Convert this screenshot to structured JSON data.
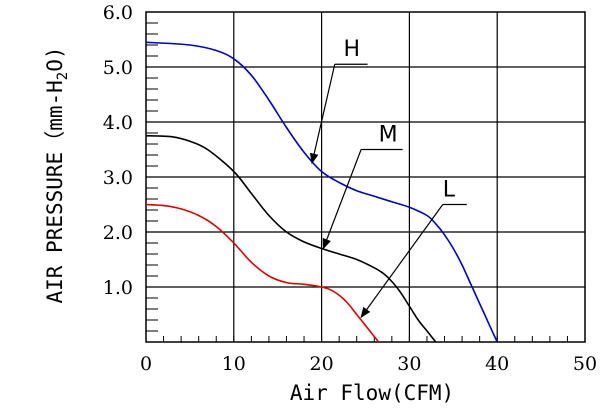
{
  "chart_data": {
    "type": "line",
    "xlabel": "Air Flow(CFM)",
    "ylabel_main": "AIR PRESSURE（mm-H",
    "ylabel_sub": "2",
    "ylabel_end": "O)",
    "xlim": [
      0,
      50
    ],
    "ylim": [
      0,
      6
    ],
    "x_ticks": [
      0,
      10,
      20,
      30,
      40,
      50
    ],
    "x_tick_labels": [
      "0",
      "10",
      "20",
      "30",
      "40",
      "50"
    ],
    "y_ticks": [
      1,
      2,
      3,
      4,
      5,
      6
    ],
    "y_tick_labels": [
      "1.0",
      "2.0",
      "3.0",
      "4.0",
      "5.0",
      "6.0"
    ],
    "grid": true,
    "series": [
      {
        "name": "H",
        "color": "#0000cc",
        "x": [
          0,
          5,
          8,
          10,
          12,
          14,
          16,
          18,
          20,
          22,
          24,
          26,
          28,
          30,
          32,
          33,
          34,
          35,
          36,
          37,
          38,
          39,
          40
        ],
        "y": [
          5.45,
          5.4,
          5.3,
          5.15,
          4.85,
          4.4,
          3.9,
          3.45,
          3.1,
          2.9,
          2.75,
          2.65,
          2.55,
          2.45,
          2.3,
          2.15,
          1.95,
          1.7,
          1.4,
          1.05,
          0.7,
          0.35,
          0
        ]
      },
      {
        "name": "M",
        "color": "#000000",
        "x": [
          0,
          3,
          5,
          7,
          10,
          12,
          14,
          16,
          18,
          20,
          22,
          24,
          26,
          27,
          28,
          29,
          30,
          31,
          32,
          33
        ],
        "y": [
          3.75,
          3.73,
          3.65,
          3.5,
          3.1,
          2.7,
          2.3,
          2.0,
          1.82,
          1.7,
          1.6,
          1.5,
          1.35,
          1.25,
          1.1,
          0.9,
          0.65,
          0.4,
          0.2,
          0
        ]
      },
      {
        "name": "L",
        "color": "#dd0000",
        "x": [
          0,
          2,
          4,
          6,
          8,
          10,
          12,
          14,
          16,
          18,
          20,
          21,
          22,
          23,
          24,
          25,
          26,
          26.5
        ],
        "y": [
          2.5,
          2.48,
          2.42,
          2.3,
          2.1,
          1.8,
          1.45,
          1.2,
          1.08,
          1.05,
          1.0,
          0.95,
          0.85,
          0.7,
          0.5,
          0.3,
          0.1,
          0
        ]
      }
    ],
    "callouts": [
      {
        "label": "H",
        "text_at": [
          22.5,
          5.2
        ],
        "arrow_from": [
          21.5,
          5.05
        ],
        "arrow_to": [
          18.9,
          3.25
        ]
      },
      {
        "label": "M",
        "text_at": [
          26.5,
          3.65
        ],
        "arrow_from": [
          24.5,
          3.5
        ],
        "arrow_to": [
          20.2,
          1.7
        ]
      },
      {
        "label": "L",
        "text_at": [
          33.8,
          2.65
        ],
        "arrow_from": [
          33.8,
          2.5
        ],
        "arrow_to": [
          24.5,
          0.45
        ]
      }
    ]
  }
}
